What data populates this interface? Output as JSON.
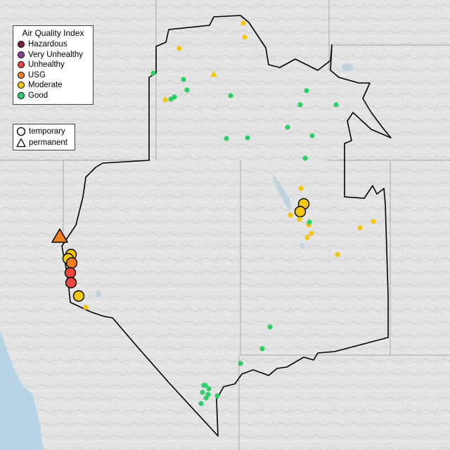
{
  "legend": {
    "title": "Air Quality Index",
    "categories": [
      {
        "label": "Hazardous",
        "color": "#7e2334"
      },
      {
        "label": "Very Unhealthy",
        "color": "#8f3f97"
      },
      {
        "label": "Unhealthy",
        "color": "#e8483f"
      },
      {
        "label": "USG",
        "color": "#ee7f23"
      },
      {
        "label": "Moderate",
        "color": "#f2c80f"
      },
      {
        "label": "Good",
        "color": "#2ecf6a"
      }
    ],
    "types": [
      {
        "label": "temporary",
        "symbol": "circle-icon"
      },
      {
        "label": "permanent",
        "symbol": "triangle-icon"
      }
    ]
  },
  "monitors": [
    {
      "category": "USG",
      "type": "permanent",
      "size": "large"
    },
    {
      "category": "Moderate",
      "type": "temporary",
      "size": "large"
    },
    {
      "category": "Moderate",
      "type": "temporary",
      "size": "large"
    },
    {
      "category": "USG",
      "type": "temporary",
      "size": "large"
    },
    {
      "category": "Unhealthy",
      "type": "temporary",
      "size": "large"
    },
    {
      "category": "Unhealthy",
      "type": "temporary",
      "size": "large"
    },
    {
      "category": "Moderate",
      "type": "temporary",
      "size": "large"
    },
    {
      "category": "Moderate",
      "type": "temporary",
      "size": "large"
    },
    {
      "category": "Moderate",
      "type": "temporary",
      "size": "large"
    },
    {
      "category": "Moderate",
      "type": "temporary",
      "size": "small"
    },
    {
      "category": "Moderate",
      "type": "temporary",
      "size": "small"
    },
    {
      "category": "Moderate",
      "type": "temporary",
      "size": "small"
    },
    {
      "category": "Moderate",
      "type": "temporary",
      "size": "small"
    },
    {
      "category": "Moderate",
      "type": "permanent",
      "size": "small"
    },
    {
      "category": "Moderate",
      "type": "temporary",
      "size": "small"
    },
    {
      "category": "Moderate",
      "type": "temporary",
      "size": "small"
    },
    {
      "category": "Moderate",
      "type": "temporary",
      "size": "small"
    },
    {
      "category": "Moderate",
      "type": "temporary",
      "size": "small"
    },
    {
      "category": "Moderate",
      "type": "temporary",
      "size": "small"
    },
    {
      "category": "Moderate",
      "type": "temporary",
      "size": "small"
    },
    {
      "category": "Moderate",
      "type": "temporary",
      "size": "small"
    },
    {
      "category": "Moderate",
      "type": "temporary",
      "size": "small"
    },
    {
      "category": "Moderate",
      "type": "temporary",
      "size": "small"
    },
    {
      "category": "Moderate",
      "type": "temporary",
      "size": "small"
    },
    {
      "category": "Good",
      "type": "temporary",
      "size": "small"
    },
    {
      "category": "Good",
      "type": "temporary",
      "size": "small"
    },
    {
      "category": "Good",
      "type": "temporary",
      "size": "small"
    },
    {
      "category": "Good",
      "type": "temporary",
      "size": "small"
    },
    {
      "category": "Good",
      "type": "temporary",
      "size": "small"
    },
    {
      "category": "Good",
      "type": "temporary",
      "size": "small"
    },
    {
      "category": "Good",
      "type": "temporary",
      "size": "small"
    },
    {
      "category": "Good",
      "type": "temporary",
      "size": "small"
    },
    {
      "category": "Good",
      "type": "temporary",
      "size": "small"
    },
    {
      "category": "Good",
      "type": "temporary",
      "size": "small"
    },
    {
      "category": "Good",
      "type": "temporary",
      "size": "small"
    },
    {
      "category": "Good",
      "type": "temporary",
      "size": "small"
    },
    {
      "category": "Good",
      "type": "temporary",
      "size": "small"
    },
    {
      "category": "Good",
      "type": "temporary",
      "size": "small"
    },
    {
      "category": "Good",
      "type": "temporary",
      "size": "small"
    },
    {
      "category": "Good",
      "type": "temporary",
      "size": "small"
    },
    {
      "category": "Good",
      "type": "temporary",
      "size": "small"
    },
    {
      "category": "Good",
      "type": "temporary",
      "size": "small"
    },
    {
      "category": "Good",
      "type": "temporary",
      "size": "small"
    },
    {
      "category": "Good",
      "type": "temporary",
      "size": "small"
    },
    {
      "category": "Good",
      "type": "temporary",
      "size": "small"
    },
    {
      "category": "Good",
      "type": "temporary",
      "size": "small"
    },
    {
      "category": "Good",
      "type": "temporary",
      "size": "small"
    },
    {
      "category": "Good",
      "type": "temporary",
      "size": "small"
    },
    {
      "category": "Good",
      "type": "temporary",
      "size": "small"
    },
    {
      "category": "Good",
      "type": "temporary",
      "size": "small"
    }
  ]
}
